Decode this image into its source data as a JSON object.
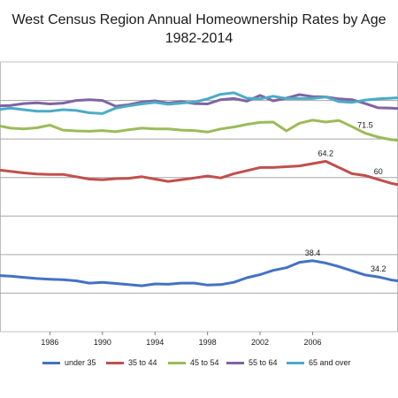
{
  "chart_data": {
    "type": "line",
    "title": "West Census Region Annual Homeownership Rates by Age",
    "subtitle": "1982-2014",
    "xlabel": "",
    "ylabel": "",
    "x": [
      1982,
      1983,
      1984,
      1985,
      1986,
      1987,
      1988,
      1989,
      1990,
      1991,
      1992,
      1993,
      1994,
      1995,
      1996,
      1997,
      1998,
      1999,
      2000,
      2001,
      2002,
      2003,
      2004,
      2005,
      2006,
      2007,
      2008,
      2009,
      2010,
      2011,
      2012,
      2013,
      2014
    ],
    "x_ticks": [
      1986,
      1990,
      1994,
      1998,
      2002,
      2006
    ],
    "ylim": [
      20,
      90
    ],
    "gridlines": [
      30,
      40,
      50,
      60,
      70,
      80
    ],
    "grid": true,
    "legend_position": "bottom",
    "series": [
      {
        "name": "under 35",
        "color": "#4472C4",
        "values": [
          34.6,
          34.4,
          34.1,
          33.8,
          33.6,
          33.5,
          33.2,
          32.6,
          32.8,
          32.5,
          32.2,
          31.9,
          32.4,
          32.3,
          32.6,
          32.6,
          32.1,
          32.2,
          32.8,
          34.0,
          34.8,
          35.9,
          36.6,
          38.0,
          38.4,
          37.8,
          36.9,
          35.8,
          34.7,
          34.2,
          33.4,
          33.0,
          32.8
        ]
      },
      {
        "name": "35 to 44",
        "color": "#C0504D",
        "values": [
          62.0,
          61.6,
          61.2,
          60.9,
          60.8,
          60.8,
          60.2,
          59.6,
          59.4,
          59.7,
          59.8,
          60.2,
          59.6,
          59.0,
          59.4,
          59.9,
          60.4,
          59.9,
          61.0,
          61.8,
          62.6,
          62.6,
          62.8,
          63.0,
          63.6,
          64.2,
          62.6,
          61.0,
          60.5,
          59.5,
          58.5,
          57.8,
          57.0
        ]
      },
      {
        "name": "45 to 54",
        "color": "#9BBB59",
        "values": [
          73.5,
          72.8,
          72.6,
          72.9,
          73.6,
          72.3,
          72.1,
          72.0,
          72.2,
          71.9,
          72.4,
          72.8,
          72.6,
          72.6,
          72.3,
          72.2,
          71.8,
          72.6,
          73.1,
          73.8,
          74.3,
          74.4,
          72.1,
          74.1,
          74.9,
          74.4,
          74.8,
          73.2,
          71.5,
          70.5,
          69.8,
          69.5,
          69.0
        ]
      },
      {
        "name": "55 to 64",
        "color": "#8064A2",
        "values": [
          78.6,
          78.7,
          79.2,
          79.4,
          79.1,
          79.3,
          80.0,
          80.2,
          80.0,
          78.5,
          78.9,
          79.6,
          79.9,
          79.3,
          79.7,
          79.2,
          79.1,
          80.2,
          80.5,
          79.8,
          81.3,
          79.9,
          80.6,
          81.5,
          81.0,
          80.9,
          80.4,
          80.2,
          79.2,
          78.1,
          78.0,
          77.8,
          77.5
        ]
      },
      {
        "name": "65 and over",
        "color": "#4BACC6",
        "values": [
          77.6,
          78.0,
          77.6,
          77.2,
          77.2,
          77.6,
          77.4,
          76.8,
          76.6,
          78.0,
          78.6,
          79.1,
          79.5,
          79.0,
          79.3,
          79.6,
          80.4,
          81.6,
          82.0,
          80.6,
          80.4,
          81.1,
          80.5,
          80.5,
          80.5,
          80.9,
          79.7,
          79.5,
          80.1,
          80.4,
          80.6,
          80.8,
          81.0
        ]
      }
    ],
    "data_labels": [
      {
        "series": "45 to 54",
        "x": 2010,
        "text": "71.5"
      },
      {
        "series": "35 to 44",
        "x": 2007,
        "text": "64.2"
      },
      {
        "series": "35 to 44",
        "x": 2011,
        "text": "60"
      },
      {
        "series": "under 35",
        "x": 2006,
        "text": "38.4"
      },
      {
        "series": "under 35",
        "x": 2011,
        "text": "34.2"
      }
    ]
  }
}
